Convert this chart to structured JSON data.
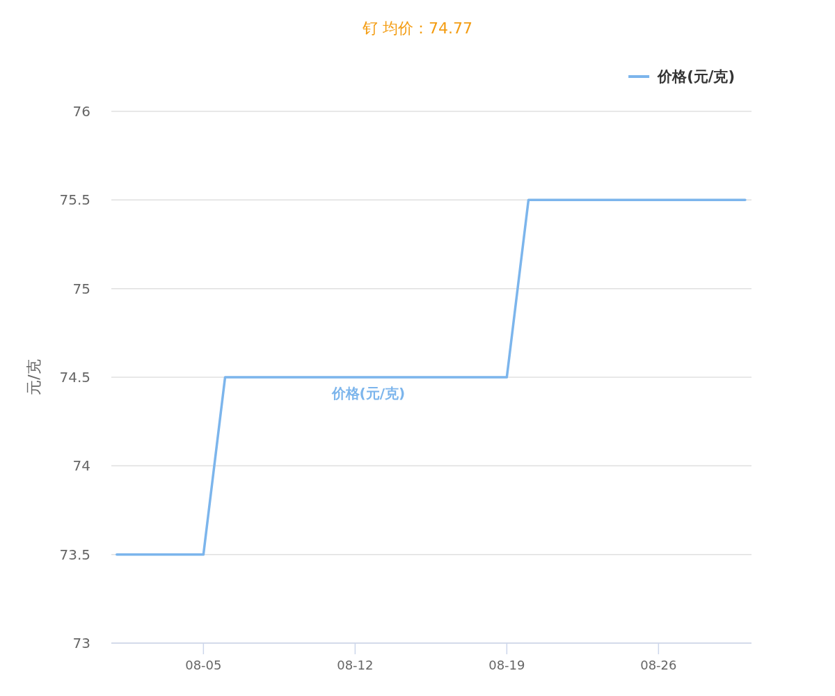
{
  "chart_data": {
    "type": "line",
    "title": "钌 均价：74.77",
    "ylabel": "元/克",
    "x": [
      "--08-01",
      "--08-05",
      "--08-06",
      "--08-19",
      "--08-20",
      "--08-30"
    ],
    "series": [
      {
        "name": "价格(元/克)",
        "color": "#7cb5ec",
        "values": [
          73.5,
          73.5,
          74.5,
          74.5,
          75.5,
          75.5
        ]
      }
    ],
    "xlim": [
      "--07-31T18:00",
      "--08-30T07:00"
    ],
    "xticks": [
      {
        "value": "--08-05",
        "label": "08-05"
      },
      {
        "value": "--08-12",
        "label": "08-12"
      },
      {
        "value": "--08-19",
        "label": "08-19"
      },
      {
        "value": "--08-26",
        "label": "08-26"
      }
    ],
    "ylim": [
      73,
      76
    ],
    "yticks": [
      73,
      73.5,
      74,
      74.5,
      75,
      75.5,
      76
    ],
    "grid": "y",
    "legend": "top right",
    "marker": "none",
    "line_style": "solid"
  }
}
